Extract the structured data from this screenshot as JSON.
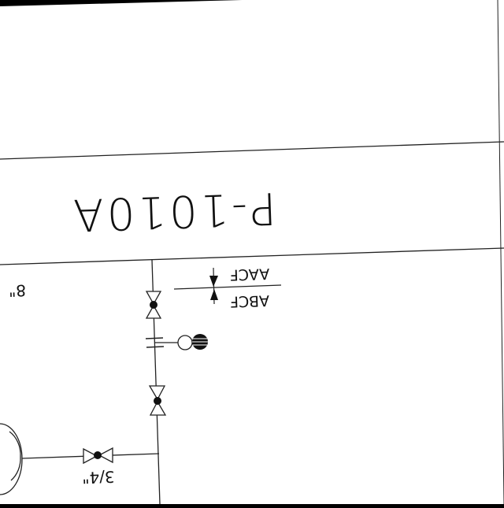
{
  "drawing": {
    "equipment_tag": "P-1010A",
    "line_size_left": "8\"",
    "line_size_bottom": "3/4\"",
    "piping_class_top": "AACF",
    "piping_class_bottom": "ABCF"
  }
}
